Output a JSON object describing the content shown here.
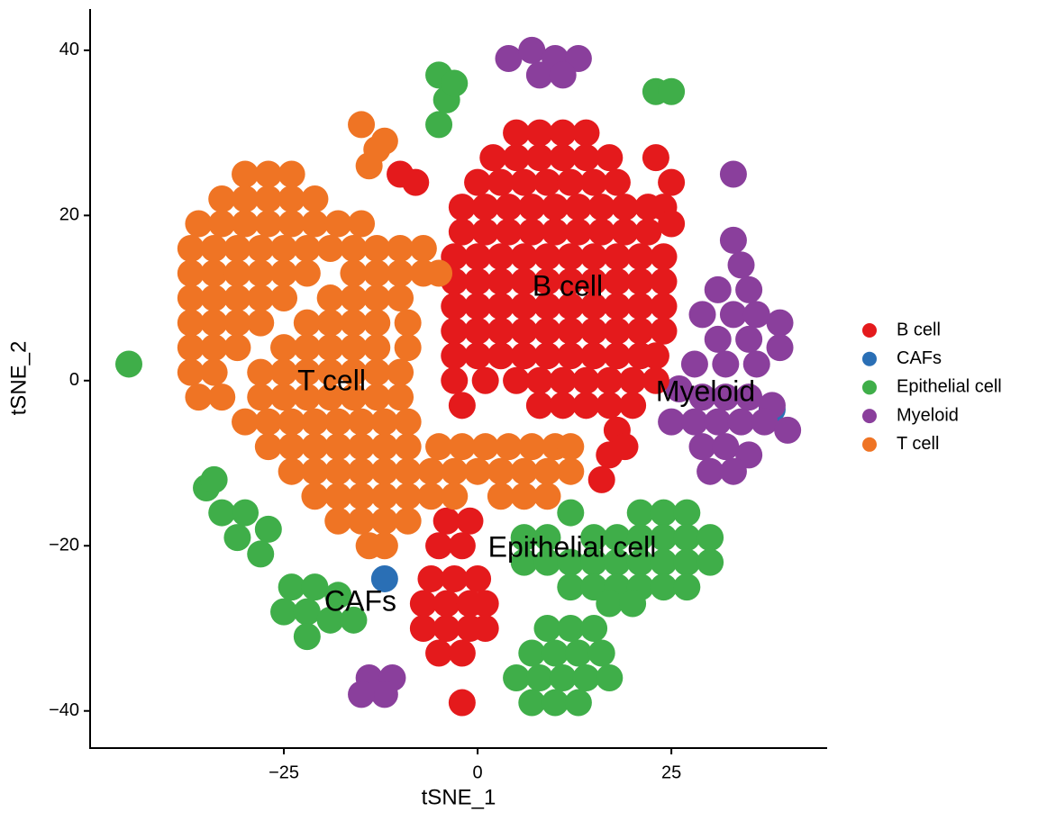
{
  "chart_data": {
    "type": "scatter",
    "xlabel": "tSNE_1",
    "ylabel": "tSNE_2",
    "xlim": [
      -50,
      45.1
    ],
    "ylim": [
      -44.5,
      45
    ],
    "xticks": [
      {
        "value": -25,
        "label": "−25"
      },
      0,
      25
    ],
    "yticks": [
      {
        "value": -40,
        "label": "−40"
      },
      {
        "value": -20,
        "label": "−20"
      },
      0,
      20,
      40
    ],
    "grid": false,
    "legend": "right",
    "annotations": [
      "B cell",
      "T cell",
      "Myeloid",
      "Epithelial cell",
      "CAFs"
    ],
    "series": [
      {
        "name": "B cell",
        "color": "#e41a1c",
        "x": [
          5,
          8,
          11,
          14,
          2,
          5,
          8,
          11,
          14,
          17,
          0,
          3,
          6,
          9,
          12,
          15,
          18,
          -2,
          1,
          4,
          7,
          10,
          13,
          16,
          19,
          22,
          -2,
          1,
          4,
          7,
          10,
          13,
          16,
          19,
          22,
          -3,
          0,
          3,
          6,
          9,
          12,
          15,
          18,
          21,
          24,
          -3,
          0,
          3,
          6,
          9,
          12,
          15,
          18,
          21,
          24,
          -3,
          0,
          3,
          6,
          9,
          12,
          15,
          18,
          21,
          24,
          -3,
          0,
          3,
          6,
          9,
          12,
          15,
          18,
          21,
          24,
          -3,
          0,
          3,
          6,
          9,
          12,
          15,
          18,
          21,
          23,
          -3,
          1,
          5,
          8,
          11,
          14,
          17,
          20,
          23,
          -2,
          8,
          11,
          14,
          17,
          20,
          23,
          25,
          24,
          25,
          18,
          17,
          16,
          19,
          -4,
          -1,
          -5,
          -2,
          -6,
          -3,
          0,
          -7,
          -4,
          -1,
          1,
          -7,
          -4,
          -1,
          1,
          -5,
          -2,
          -2,
          -10,
          -8
        ],
        "values": [
          30,
          30,
          30,
          30,
          27,
          27,
          27,
          27,
          27,
          27,
          24,
          24,
          24,
          24,
          24,
          24,
          24,
          21,
          21,
          21,
          21,
          21,
          21,
          21,
          21,
          21,
          18,
          18,
          18,
          18,
          18,
          18,
          18,
          18,
          18,
          15,
          15,
          15,
          15,
          15,
          15,
          15,
          15,
          15,
          15,
          12,
          12,
          12,
          12,
          12,
          12,
          12,
          12,
          12,
          12,
          9,
          9,
          9,
          9,
          9,
          9,
          9,
          9,
          9,
          9,
          6,
          6,
          6,
          6,
          6,
          6,
          6,
          6,
          6,
          6,
          3,
          3,
          3,
          3,
          3,
          3,
          3,
          3,
          3,
          3,
          0,
          0,
          0,
          0,
          0,
          0,
          0,
          0,
          0,
          -3,
          -3,
          -3,
          -3,
          -3,
          -3,
          27,
          24,
          21,
          19,
          -6,
          -9,
          -12,
          -8,
          -17,
          -17,
          -20,
          -20,
          -24,
          -24,
          -24,
          -27,
          -27,
          -27,
          -27,
          -30,
          -30,
          -30,
          -30,
          -33,
          -33,
          -39,
          25,
          24
        ]
      },
      {
        "name": "CAFs",
        "color": "#2a6fb5",
        "x": [
          -12,
          38
        ],
        "values": [
          -24,
          -3.5
        ]
      },
      {
        "name": "Epithelial cell",
        "color": "#3fae49",
        "x": [
          -5,
          -4,
          -5,
          -3,
          23,
          25,
          -45,
          -35,
          -33,
          -30,
          -27,
          -31,
          -28,
          -34,
          -24,
          -21,
          -18,
          -25,
          -22,
          -19,
          -16,
          -22,
          12,
          21,
          24,
          27,
          6,
          9,
          15,
          18,
          21,
          24,
          27,
          30,
          6,
          9,
          12,
          15,
          18,
          21,
          24,
          27,
          30,
          12,
          15,
          18,
          21,
          24,
          27,
          17,
          20,
          9,
          12,
          15,
          7,
          10,
          13,
          16,
          5,
          8,
          11,
          14,
          17,
          7,
          10,
          13
        ],
        "values": [
          37,
          34,
          31,
          36,
          35,
          35,
          2,
          -13,
          -16,
          -16,
          -18,
          -19,
          -21,
          -12,
          -25,
          -25,
          -26,
          -28,
          -28,
          -29,
          -29,
          -31,
          -16,
          -16,
          -16,
          -16,
          -19,
          -19,
          -19,
          -19,
          -19,
          -19,
          -19,
          -19,
          -22,
          -22,
          -22,
          -22,
          -22,
          -22,
          -22,
          -22,
          -22,
          -25,
          -25,
          -25,
          -25,
          -25,
          -25,
          -27,
          -27,
          -30,
          -30,
          -30,
          -33,
          -33,
          -33,
          -33,
          -36,
          -36,
          -36,
          -36,
          -36,
          -39,
          -39,
          -39
        ]
      },
      {
        "name": "Myeloid",
        "color": "#8a3f9c",
        "x": [
          4,
          7,
          10,
          13,
          8,
          11,
          33,
          34,
          31,
          35,
          29,
          33,
          36,
          39,
          31,
          35,
          39,
          28,
          32,
          36,
          26,
          29,
          32,
          35,
          38,
          25,
          28,
          31,
          34,
          37,
          40,
          29,
          32,
          35,
          30,
          33,
          -14,
          -11,
          -12,
          -15,
          33
        ],
        "values": [
          39,
          40,
          39,
          39,
          37,
          37,
          17,
          14,
          11,
          11,
          8,
          8,
          8,
          7,
          5,
          5,
          4,
          2,
          2,
          2,
          -1,
          -2,
          -2,
          -2,
          -3,
          -5,
          -5,
          -5,
          -5,
          -5,
          -6,
          -8,
          -8,
          -9,
          -11,
          -11,
          -36,
          -36,
          -38,
          -38,
          25
        ]
      },
      {
        "name": "T cell",
        "color": "#ef7424",
        "x": [
          -30,
          -27,
          -24,
          -33,
          -30,
          -27,
          -24,
          -21,
          -36,
          -33,
          -30,
          -27,
          -24,
          -21,
          -18,
          -15,
          -37,
          -34,
          -31,
          -28,
          -25,
          -22,
          -19,
          -16,
          -13,
          -10,
          -7,
          -37,
          -34,
          -31,
          -28,
          -25,
          -22,
          -16,
          -13,
          -10,
          -7,
          -5,
          -37,
          -34,
          -31,
          -28,
          -25,
          -19,
          -16,
          -13,
          -10,
          -37,
          -34,
          -31,
          -28,
          -22,
          -19,
          -16,
          -13,
          -9,
          -37,
          -34,
          -31,
          -25,
          -22,
          -19,
          -16,
          -13,
          -9,
          -37,
          -34,
          -28,
          -25,
          -22,
          -19,
          -16,
          -13,
          -10,
          -36,
          -33,
          -28,
          -25,
          -22,
          -19,
          -16,
          -13,
          -10,
          -30,
          -27,
          -24,
          -21,
          -18,
          -15,
          -12,
          -9,
          -27,
          -24,
          -21,
          -18,
          -15,
          -12,
          -9,
          -5,
          -2,
          1,
          4,
          7,
          10,
          12,
          -24,
          -21,
          -18,
          -15,
          -12,
          -9,
          -6,
          -3,
          0,
          3,
          6,
          9,
          12,
          -21,
          -18,
          -15,
          -12,
          -9,
          -6,
          -3,
          3,
          6,
          9,
          -18,
          -15,
          -12,
          -9,
          -14,
          -12,
          -15,
          -13,
          -14,
          -12
        ],
        "values": [
          25,
          25,
          25,
          22,
          22,
          22,
          22,
          22,
          19,
          19,
          19,
          19,
          19,
          19,
          19,
          19,
          16,
          16,
          16,
          16,
          16,
          16,
          16,
          16,
          16,
          16,
          16,
          13,
          13,
          13,
          13,
          13,
          13,
          13,
          13,
          13,
          13,
          13,
          10,
          10,
          10,
          10,
          10,
          10,
          10,
          10,
          10,
          7,
          7,
          7,
          7,
          7,
          7,
          7,
          7,
          7,
          4,
          4,
          4,
          4,
          4,
          4,
          4,
          4,
          4,
          1,
          1,
          1,
          1,
          1,
          1,
          1,
          1,
          1,
          -2,
          -2,
          -2,
          -2,
          -2,
          -2,
          -2,
          -2,
          -2,
          -5,
          -5,
          -5,
          -5,
          -5,
          -5,
          -5,
          -5,
          -8,
          -8,
          -8,
          -8,
          -8,
          -8,
          -8,
          -8,
          -8,
          -8,
          -8,
          -8,
          -8,
          -8,
          -11,
          -11,
          -11,
          -11,
          -11,
          -11,
          -11,
          -11,
          -11,
          -11,
          -11,
          -11,
          -11,
          -14,
          -14,
          -14,
          -14,
          -14,
          -14,
          -14,
          -14,
          -14,
          -14,
          -17,
          -17,
          -17,
          -17,
          -20,
          -20,
          31,
          28,
          26,
          29
        ]
      }
    ]
  }
}
